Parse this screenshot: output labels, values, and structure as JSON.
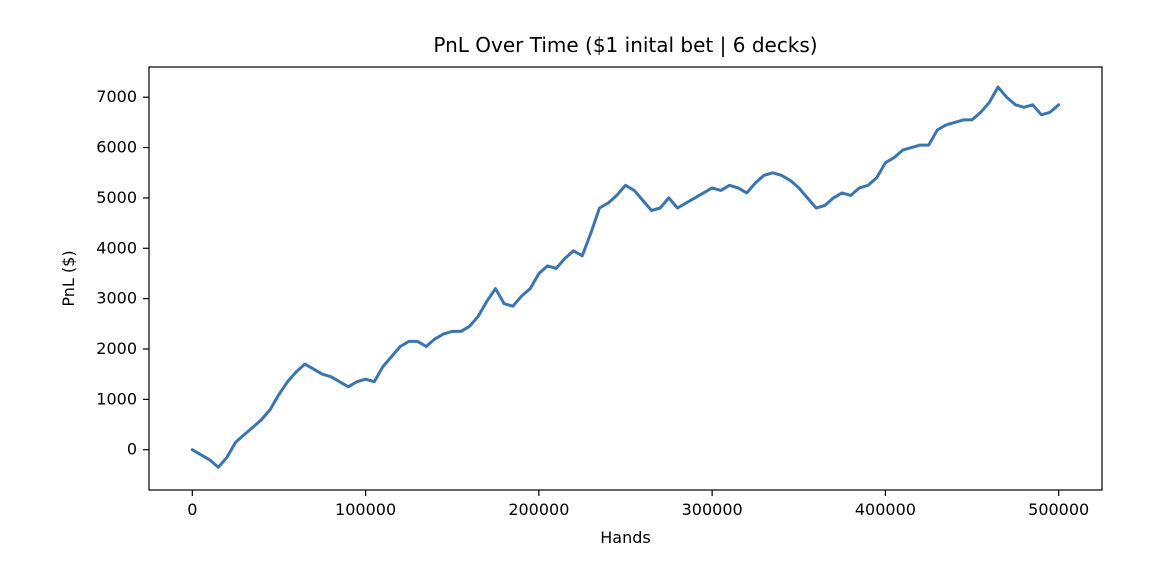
{
  "chart_data": {
    "type": "line",
    "title": "PnL Over Time ($1 inital bet | 6 decks)",
    "xlabel": "Hands",
    "ylabel": "PnL ($)",
    "xlim": [
      -25000,
      525000
    ],
    "ylim": [
      -800,
      7600
    ],
    "xticks": [
      0,
      100000,
      200000,
      300000,
      400000,
      500000
    ],
    "yticks": [
      0,
      1000,
      2000,
      3000,
      4000,
      5000,
      6000,
      7000
    ],
    "grid": false,
    "legend": "none",
    "series": [
      {
        "color": "#3a75b0",
        "x": [
          0,
          5000,
          10000,
          15000,
          20000,
          25000,
          30000,
          35000,
          40000,
          45000,
          50000,
          55000,
          60000,
          65000,
          70000,
          75000,
          80000,
          85000,
          90000,
          95000,
          100000,
          105000,
          110000,
          115000,
          120000,
          125000,
          130000,
          135000,
          140000,
          145000,
          150000,
          155000,
          160000,
          165000,
          170000,
          175000,
          180000,
          185000,
          190000,
          195000,
          200000,
          205000,
          210000,
          215000,
          220000,
          225000,
          230000,
          235000,
          240000,
          245000,
          250000,
          255000,
          260000,
          265000,
          270000,
          275000,
          280000,
          285000,
          290000,
          295000,
          300000,
          305000,
          310000,
          315000,
          320000,
          325000,
          330000,
          335000,
          340000,
          345000,
          350000,
          355000,
          360000,
          365000,
          370000,
          375000,
          380000,
          385000,
          390000,
          395000,
          400000,
          405000,
          410000,
          415000,
          420000,
          425000,
          430000,
          435000,
          440000,
          445000,
          450000,
          455000,
          460000,
          465000,
          470000,
          475000,
          480000,
          485000,
          490000,
          495000,
          500000
        ],
        "y": [
          0,
          -100,
          -200,
          -350,
          -150,
          150,
          300,
          450,
          600,
          800,
          1100,
          1350,
          1550,
          1700,
          1600,
          1500,
          1450,
          1350,
          1250,
          1350,
          1400,
          1350,
          1650,
          1850,
          2050,
          2150,
          2150,
          2050,
          2200,
          2300,
          2350,
          2350,
          2450,
          2650,
          2950,
          3200,
          2900,
          2850,
          3050,
          3200,
          3500,
          3650,
          3600,
          3800,
          3950,
          3850,
          4300,
          4800,
          4900,
          5050,
          5250,
          5150,
          4950,
          4750,
          4800,
          5000,
          4800,
          4900,
          5000,
          5100,
          5200,
          5150,
          5250,
          5200,
          5100,
          5300,
          5450,
          5500,
          5450,
          5350,
          5200,
          5000,
          4800,
          4850,
          5000,
          5100,
          5050,
          5200,
          5250,
          5400,
          5700,
          5800,
          5950,
          6000,
          6050,
          6050,
          6350,
          6450,
          6500,
          6550,
          6550,
          6700,
          6900,
          7200,
          7000,
          6850,
          6800,
          6850,
          6650,
          6700,
          6850
        ]
      }
    ]
  }
}
